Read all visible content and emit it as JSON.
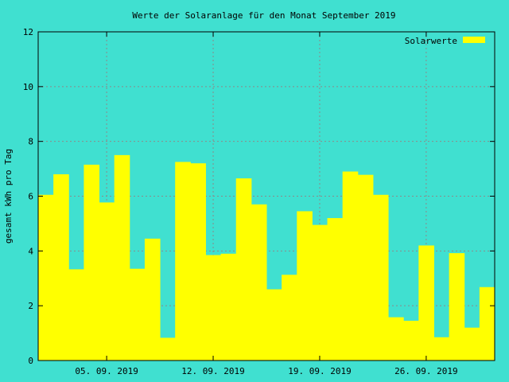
{
  "chart_data": {
    "type": "bar",
    "title": "Werte der Solaranlage für den Monat September 2019",
    "xlabel": "",
    "ylabel": "gesamt kWh pro Tag",
    "ylim": [
      0,
      12
    ],
    "yticks": [
      "0",
      "2",
      "4",
      "6",
      "8",
      "10",
      "12"
    ],
    "xticks": [
      {
        "label": "05. 09. 2019",
        "day": 5
      },
      {
        "label": "12. 09. 2019",
        "day": 12
      },
      {
        "label": "19. 09. 2019",
        "day": 19
      },
      {
        "label": "26. 09. 2019",
        "day": 26
      }
    ],
    "grid": true,
    "legend_position": "top-right",
    "categories": [
      "01. 09. 2019",
      "02. 09. 2019",
      "03. 09. 2019",
      "04. 09. 2019",
      "05. 09. 2019",
      "06. 09. 2019",
      "07. 09. 2019",
      "08. 09. 2019",
      "09. 09. 2019",
      "10. 09. 2019",
      "11. 09. 2019",
      "12. 09. 2019",
      "13. 09. 2019",
      "14. 09. 2019",
      "15. 09. 2019",
      "16. 09. 2019",
      "17. 09. 2019",
      "18. 09. 2019",
      "19. 09. 2019",
      "20. 09. 2019",
      "21. 09. 2019",
      "22. 09. 2019",
      "23. 09. 2019",
      "24. 09. 2019",
      "25. 09. 2019",
      "26. 09. 2019",
      "27. 09. 2019",
      "28. 09. 2019",
      "29. 09. 2019",
      "30. 09. 2019"
    ],
    "series": [
      {
        "name": "Solarwerte",
        "color": "#ffff00",
        "values": [
          6.05,
          6.8,
          3.33,
          7.15,
          5.77,
          7.5,
          3.35,
          4.45,
          0.83,
          7.25,
          7.2,
          3.85,
          3.9,
          6.65,
          5.7,
          2.6,
          3.13,
          5.45,
          4.95,
          5.2,
          6.9,
          6.78,
          6.05,
          1.58,
          1.45,
          4.2,
          0.85,
          3.92,
          1.2,
          2.68
        ]
      }
    ]
  }
}
